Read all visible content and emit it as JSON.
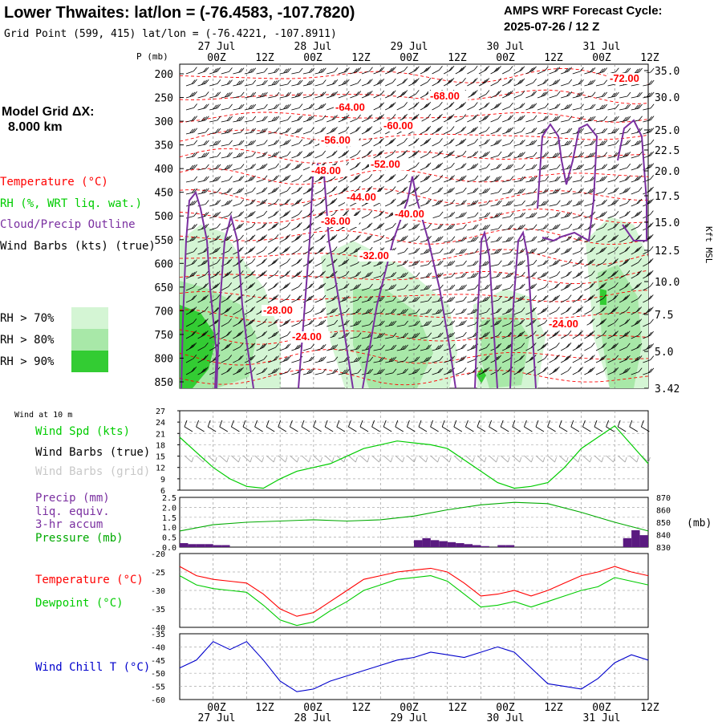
{
  "header": {
    "title": "Lower Thwaites:  lat/lon = (-76.4583, -107.7820)",
    "subtitle": "Grid Point (599, 415) lat/lon = (-76.4221, -107.8911)",
    "forecast_title": "AMPS WRF Forecast Cycle:",
    "forecast_cycle": "2025-07-26 / 12  Z"
  },
  "left_panel": {
    "grid_label": "Model Grid ΔX:",
    "grid_value": "8.000 km",
    "legend": {
      "temperature": "Temperature (°C)",
      "rh": "RH (%, WRT liq. wat.)",
      "cloud": "Cloud/Precip Outline",
      "wind": "Wind Barbs (kts) (true)"
    },
    "rh_levels": [
      "RH > 70%",
      "RH > 80%",
      "RH > 90%"
    ],
    "wind10_label": "Wind at 10 m",
    "wind_labels": [
      "Wind Spd (kts)",
      "Wind Barbs (true)",
      "Wind Barbs (grid)"
    ],
    "precip_labels": [
      "Precip (mm)",
      "liq. equiv.",
      "3-hr accum",
      "Pressure (mb)"
    ],
    "temp_labels": [
      "Temperature (°C)",
      "Dewpoint (°C)"
    ],
    "chill_label": "Wind Chill T (°C)",
    "pressure_unit": "(mb)",
    "kft_label": "Kft MSL"
  },
  "colors": {
    "temperature": "#ff0000",
    "rh": "#00cc00",
    "cloud": "#7a2fa0",
    "wind": "#000000",
    "rh70": "#d4f5d4",
    "rh80": "#a8e8a8",
    "rh90": "#33cc33",
    "precip": "#5a1a80",
    "pressure": "#00aa00",
    "dewpoint": "#00cc00",
    "windchill": "#0000cc",
    "grid_wind": "#aaaaaa"
  },
  "chart_data": [
    {
      "type": "line",
      "panel": "cross-section",
      "x_ticks": [
        "00Z",
        "12Z",
        "00Z",
        "12Z",
        "00Z",
        "12Z",
        "00Z",
        "12Z",
        "00Z",
        "12Z"
      ],
      "date_labels": [
        "27 Jul",
        "28 Jul",
        "29 Jul",
        "30 Jul",
        "31 Jul"
      ],
      "pressure_label": "P (mb)",
      "y_ticks": [
        "200",
        "250",
        "300",
        "350",
        "400",
        "450",
        "500",
        "550",
        "600",
        "650",
        "700",
        "750",
        "800",
        "850"
      ],
      "kft_ticks": [
        "35.0",
        "30.0",
        "25.0",
        "22.5",
        "20.0",
        "17.5",
        "15.0",
        "12.5",
        "10.0",
        "7.5",
        "5.0",
        "3.42"
      ],
      "temperature_labels": [
        "-72.00",
        "-68.00",
        "-64.00",
        "-60.00",
        "-56.00",
        "-52.00",
        "-48.00",
        "-44.00",
        "-40.00",
        "-36.00",
        "-32.00",
        "-28.00",
        "-24.00",
        "-24.00"
      ]
    },
    {
      "type": "line",
      "panel": "wind-10m",
      "y_ticks": [
        "27",
        "24",
        "21",
        "18",
        "15",
        "12",
        "9",
        "6"
      ],
      "ylim": [
        6,
        27
      ],
      "hours": [
        0,
        6,
        12,
        18,
        24,
        30,
        36,
        42,
        48,
        54,
        60,
        66,
        72,
        78,
        84,
        90,
        96,
        102,
        108,
        114,
        120,
        126,
        132,
        138,
        144,
        150,
        156,
        162,
        168
      ],
      "series": [
        {
          "name": "Wind Spd (kts)",
          "values": [
            20,
            16,
            12,
            9,
            7,
            6.5,
            9,
            11,
            12,
            13,
            15,
            17,
            18,
            19,
            18.5,
            18,
            17,
            14,
            11,
            8,
            6.5,
            7,
            8,
            12,
            17,
            20,
            23,
            18,
            13
          ]
        }
      ]
    },
    {
      "type": "bar",
      "panel": "precip-pressure",
      "y_ticks": [
        "2.5",
        "2.0",
        "1.5",
        "1.0",
        "0.5",
        "0.0"
      ],
      "ylim": [
        0,
        2.5
      ],
      "pressure_ticks": [
        "870",
        "860",
        "850",
        "840",
        "830"
      ],
      "pressure_lim": [
        830,
        870
      ],
      "precip_hours": [
        0,
        3,
        6,
        9,
        12,
        15,
        18,
        21,
        24,
        27,
        30,
        33,
        36,
        39,
        42,
        45,
        48,
        51,
        54,
        57,
        60,
        63,
        66,
        69,
        72,
        75,
        78,
        81,
        84,
        87,
        90,
        93,
        96,
        99,
        102,
        105,
        108,
        111,
        114,
        117,
        120,
        123,
        126,
        129,
        132,
        135,
        138,
        141,
        144,
        147,
        150,
        153,
        156,
        159,
        162,
        165
      ],
      "precip_values": [
        0.2,
        0.15,
        0.15,
        0.15,
        0.1,
        0.1,
        0,
        0,
        0,
        0,
        0,
        0,
        0,
        0,
        0,
        0,
        0,
        0,
        0,
        0,
        0,
        0,
        0,
        0,
        0,
        0,
        0,
        0,
        0.35,
        0.45,
        0.35,
        0.3,
        0.25,
        0.2,
        0.15,
        0.1,
        0.05,
        0,
        0.1,
        0.1,
        0,
        0,
        0,
        0,
        0,
        0,
        0,
        0,
        0,
        0,
        0,
        0,
        0,
        0.45,
        0.85,
        0.6
      ],
      "pressure_hours": [
        0,
        12,
        24,
        36,
        48,
        60,
        72,
        84,
        96,
        108,
        120,
        132,
        144,
        156,
        168
      ],
      "pressure_values": [
        843,
        848,
        850,
        851,
        852,
        851,
        852,
        855,
        860,
        864,
        866,
        865,
        858,
        850,
        843
      ]
    },
    {
      "type": "line",
      "panel": "temperature",
      "y_ticks": [
        "-20",
        "-25",
        "-30",
        "-35",
        "-40"
      ],
      "ylim": [
        -40,
        -20
      ],
      "hours": [
        0,
        6,
        12,
        18,
        24,
        30,
        36,
        42,
        48,
        54,
        60,
        66,
        72,
        78,
        84,
        90,
        96,
        102,
        108,
        114,
        120,
        126,
        132,
        138,
        144,
        150,
        156,
        162,
        168
      ],
      "series": [
        {
          "name": "Temperature (°C)",
          "values": [
            -23.5,
            -26,
            -27,
            -27.5,
            -28,
            -31,
            -35,
            -37,
            -36,
            -33,
            -30,
            -27,
            -26,
            -25,
            -24.5,
            -24,
            -25,
            -28,
            -31.5,
            -31,
            -30,
            -31.5,
            -30,
            -28,
            -26,
            -25,
            -23.5,
            -25,
            -26
          ]
        },
        {
          "name": "Dewpoint (°C)",
          "values": [
            -26,
            -28.5,
            -29.5,
            -30,
            -30.5,
            -34,
            -38,
            -39.5,
            -38.5,
            -35.5,
            -33,
            -30,
            -28.5,
            -27,
            -26.5,
            -26,
            -27.5,
            -31,
            -34.5,
            -34,
            -33,
            -34.5,
            -33,
            -31.5,
            -30,
            -29,
            -26.5,
            -27.5,
            -28.5
          ]
        }
      ]
    },
    {
      "type": "line",
      "panel": "wind-chill",
      "y_ticks": [
        "-35",
        "-40",
        "-45",
        "-50",
        "-55",
        "-60"
      ],
      "ylim": [
        -60,
        -35
      ],
      "hours": [
        0,
        6,
        12,
        18,
        24,
        30,
        36,
        42,
        48,
        54,
        60,
        66,
        72,
        78,
        84,
        90,
        96,
        102,
        108,
        114,
        120,
        126,
        132,
        138,
        144,
        150,
        156,
        162,
        168
      ],
      "series": [
        {
          "name": "Wind Chill T (°C)",
          "values": [
            -48,
            -45,
            -38,
            -41,
            -38,
            -45,
            -53,
            -57,
            -56,
            -53,
            -51,
            -49,
            -47,
            -45,
            -44,
            -42,
            -43,
            -44,
            -42,
            -40,
            -42,
            -48,
            -54,
            -55,
            -56,
            -52,
            -46,
            -43,
            -45
          ]
        }
      ]
    }
  ]
}
